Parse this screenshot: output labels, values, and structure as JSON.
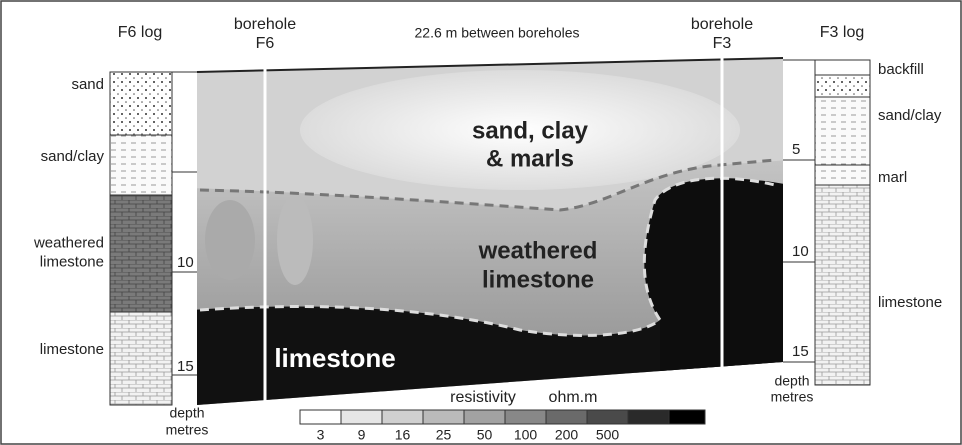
{
  "f6_log": {
    "title": "F6 log",
    "layers": [
      [
        "sand"
      ],
      [
        "sand/clay"
      ],
      [
        "weathered",
        "limestone"
      ],
      [
        "limestone"
      ]
    ],
    "depth_ticks": [
      10,
      15
    ],
    "depth_label": [
      "depth",
      "metres"
    ]
  },
  "f3_log": {
    "title": "F3 log",
    "layers": [
      [
        "backfill"
      ],
      [
        "sand/clay"
      ],
      [
        "marl"
      ],
      [
        "limestone"
      ]
    ],
    "depth_ticks": [
      5,
      10,
      15
    ],
    "depth_label": [
      "depth",
      "metres"
    ]
  },
  "section": {
    "borehole_left": [
      "borehole",
      "F6"
    ],
    "borehole_right": [
      "borehole",
      "F3"
    ],
    "spacing": "22.6 m between boreholes",
    "units": [
      [
        "sand, clay",
        "& marls"
      ],
      [
        "weathered",
        "limestone"
      ],
      [
        "limestone"
      ]
    ]
  },
  "legend": {
    "title": "resistivity",
    "unit": "ohm.m",
    "values": [
      3,
      9,
      16,
      25,
      50,
      100,
      200,
      500
    ]
  }
}
